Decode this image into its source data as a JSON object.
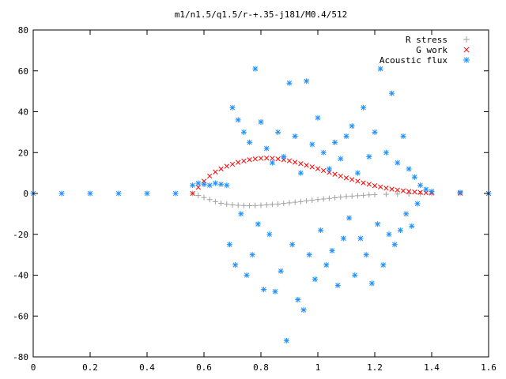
{
  "chart_data": {
    "type": "scatter",
    "title": "m1/n1.5/q1.5/r-+.35-j181/M0.4/512",
    "xlabel": "",
    "ylabel": "",
    "xlim": [
      0,
      1.6
    ],
    "ylim": [
      -80,
      80
    ],
    "x_ticks": [
      0,
      0.2,
      0.4,
      0.6,
      0.8,
      1,
      1.2,
      1.4,
      1.6
    ],
    "x_tick_labels": [
      "0",
      "0.2",
      "0.4",
      "0.6",
      "0.8",
      "1",
      "1.2",
      "1.4",
      "1.6"
    ],
    "y_ticks": [
      -80,
      -60,
      -40,
      -20,
      0,
      20,
      40,
      60,
      80
    ],
    "y_tick_labels": [
      "-80",
      "-60",
      "-40",
      "-20",
      "0",
      "20",
      "40",
      "60",
      "80"
    ],
    "grid": false,
    "legend_position": "top-right",
    "series": [
      {
        "name": "R stress",
        "marker": "plus",
        "color": "#a0a0a0",
        "points": [
          [
            0.0,
            0
          ],
          [
            0.1,
            0
          ],
          [
            0.2,
            0
          ],
          [
            0.3,
            0
          ],
          [
            0.4,
            0
          ],
          [
            0.5,
            0
          ],
          [
            0.56,
            0
          ],
          [
            0.58,
            -1
          ],
          [
            0.6,
            -2
          ],
          [
            0.62,
            -3
          ],
          [
            0.64,
            -4
          ],
          [
            0.66,
            -4.8
          ],
          [
            0.68,
            -5.2
          ],
          [
            0.7,
            -5.6
          ],
          [
            0.72,
            -5.8
          ],
          [
            0.74,
            -5.9
          ],
          [
            0.76,
            -6
          ],
          [
            0.78,
            -5.9
          ],
          [
            0.8,
            -5.8
          ],
          [
            0.82,
            -5.6
          ],
          [
            0.84,
            -5.4
          ],
          [
            0.86,
            -5.2
          ],
          [
            0.88,
            -4.9
          ],
          [
            0.9,
            -4.6
          ],
          [
            0.92,
            -4.3
          ],
          [
            0.94,
            -4
          ],
          [
            0.96,
            -3.6
          ],
          [
            0.98,
            -3.3
          ],
          [
            1.0,
            -3
          ],
          [
            1.02,
            -2.7
          ],
          [
            1.04,
            -2.4
          ],
          [
            1.06,
            -2.1
          ],
          [
            1.08,
            -1.8
          ],
          [
            1.1,
            -1.5
          ],
          [
            1.12,
            -1.3
          ],
          [
            1.14,
            -1.1
          ],
          [
            1.16,
            -0.9
          ],
          [
            1.18,
            -0.7
          ],
          [
            1.2,
            -0.6
          ],
          [
            1.24,
            -0.4
          ],
          [
            1.28,
            -0.3
          ],
          [
            1.32,
            -0.2
          ],
          [
            1.36,
            -0.1
          ],
          [
            1.4,
            0
          ],
          [
            1.5,
            0
          ],
          [
            1.6,
            0
          ]
        ]
      },
      {
        "name": "G work",
        "marker": "cross",
        "color": "#ff0000",
        "points": [
          [
            0.56,
            0
          ],
          [
            0.58,
            3
          ],
          [
            0.6,
            6
          ],
          [
            0.62,
            8.5
          ],
          [
            0.64,
            10.5
          ],
          [
            0.66,
            12
          ],
          [
            0.68,
            13.3
          ],
          [
            0.7,
            14.3
          ],
          [
            0.72,
            15.2
          ],
          [
            0.74,
            15.9
          ],
          [
            0.76,
            16.5
          ],
          [
            0.78,
            16.9
          ],
          [
            0.8,
            17.2
          ],
          [
            0.82,
            17.3
          ],
          [
            0.84,
            17.2
          ],
          [
            0.86,
            16.9
          ],
          [
            0.88,
            16.5
          ],
          [
            0.9,
            16
          ],
          [
            0.92,
            15.3
          ],
          [
            0.94,
            14.6
          ],
          [
            0.96,
            13.8
          ],
          [
            0.98,
            13
          ],
          [
            1.0,
            12.1
          ],
          [
            1.02,
            11.2
          ],
          [
            1.04,
            10.3
          ],
          [
            1.06,
            9.4
          ],
          [
            1.08,
            8.5
          ],
          [
            1.1,
            7.6
          ],
          [
            1.12,
            6.8
          ],
          [
            1.14,
            6
          ],
          [
            1.16,
            5.2
          ],
          [
            1.18,
            4.5
          ],
          [
            1.2,
            3.8
          ],
          [
            1.22,
            3.2
          ],
          [
            1.24,
            2.6
          ],
          [
            1.26,
            2.1
          ],
          [
            1.28,
            1.7
          ],
          [
            1.3,
            1.3
          ],
          [
            1.32,
            1
          ],
          [
            1.34,
            0.7
          ],
          [
            1.36,
            0.5
          ],
          [
            1.38,
            0.3
          ],
          [
            1.4,
            0.2
          ],
          [
            1.5,
            0.1
          ],
          [
            1.6,
            0
          ]
        ]
      },
      {
        "name": "Acoustic flux",
        "marker": "star",
        "color": "#1e90ff",
        "points": [
          [
            0.0,
            0
          ],
          [
            0.1,
            0
          ],
          [
            0.2,
            0
          ],
          [
            0.3,
            0
          ],
          [
            0.4,
            0
          ],
          [
            0.5,
            0
          ],
          [
            0.56,
            4
          ],
          [
            0.58,
            5
          ],
          [
            0.6,
            4.5
          ],
          [
            0.62,
            4
          ],
          [
            0.64,
            5
          ],
          [
            0.66,
            4.5
          ],
          [
            0.68,
            4
          ],
          [
            0.69,
            -25
          ],
          [
            0.7,
            42
          ],
          [
            0.71,
            -35
          ],
          [
            0.72,
            36
          ],
          [
            0.73,
            -10
          ],
          [
            0.74,
            30
          ],
          [
            0.75,
            -40
          ],
          [
            0.76,
            25
          ],
          [
            0.77,
            -30
          ],
          [
            0.78,
            61
          ],
          [
            0.79,
            -15
          ],
          [
            0.8,
            35
          ],
          [
            0.81,
            -47
          ],
          [
            0.82,
            22
          ],
          [
            0.83,
            -20
          ],
          [
            0.84,
            15
          ],
          [
            0.85,
            -48
          ],
          [
            0.86,
            30
          ],
          [
            0.87,
            -38
          ],
          [
            0.88,
            18
          ],
          [
            0.89,
            -72
          ],
          [
            0.9,
            54
          ],
          [
            0.91,
            -25
          ],
          [
            0.92,
            28
          ],
          [
            0.93,
            -52
          ],
          [
            0.94,
            10
          ],
          [
            0.95,
            -57
          ],
          [
            0.96,
            55
          ],
          [
            0.97,
            -30
          ],
          [
            0.98,
            24
          ],
          [
            0.99,
            -42
          ],
          [
            1.0,
            37
          ],
          [
            1.01,
            -18
          ],
          [
            1.02,
            20
          ],
          [
            1.03,
            -35
          ],
          [
            1.04,
            12
          ],
          [
            1.05,
            -28
          ],
          [
            1.06,
            25
          ],
          [
            1.07,
            -45
          ],
          [
            1.08,
            17
          ],
          [
            1.09,
            -22
          ],
          [
            1.1,
            28
          ],
          [
            1.11,
            -12
          ],
          [
            1.12,
            33
          ],
          [
            1.13,
            -40
          ],
          [
            1.14,
            10
          ],
          [
            1.15,
            -22
          ],
          [
            1.16,
            42
          ],
          [
            1.17,
            -30
          ],
          [
            1.18,
            18
          ],
          [
            1.19,
            -44
          ],
          [
            1.2,
            30
          ],
          [
            1.21,
            -15
          ],
          [
            1.22,
            61
          ],
          [
            1.23,
            -35
          ],
          [
            1.24,
            20
          ],
          [
            1.25,
            -20
          ],
          [
            1.26,
            49
          ],
          [
            1.27,
            -25
          ],
          [
            1.28,
            15
          ],
          [
            1.29,
            -18
          ],
          [
            1.3,
            28
          ],
          [
            1.31,
            -10
          ],
          [
            1.32,
            12
          ],
          [
            1.33,
            -16
          ],
          [
            1.34,
            8
          ],
          [
            1.35,
            -5
          ],
          [
            1.36,
            4
          ],
          [
            1.38,
            2
          ],
          [
            1.4,
            1
          ],
          [
            1.5,
            0.5
          ],
          [
            1.6,
            0
          ]
        ]
      }
    ]
  }
}
